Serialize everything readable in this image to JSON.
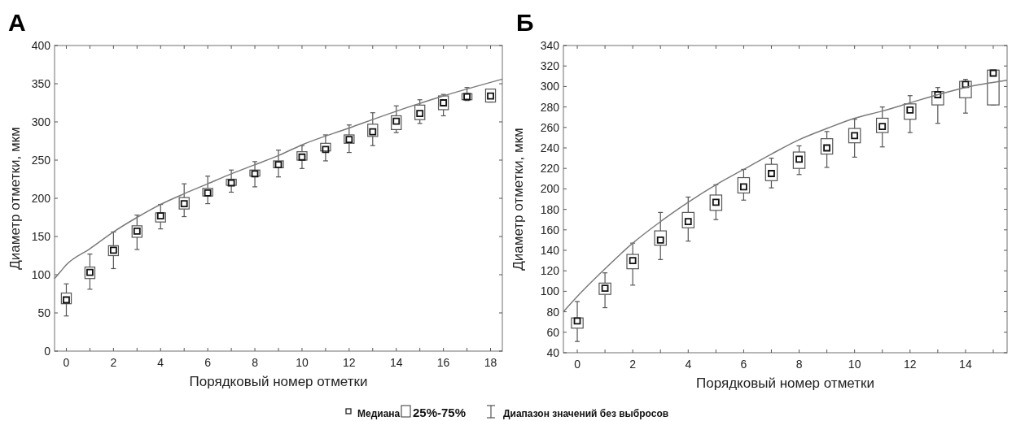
{
  "chart_data": [
    {
      "type": "box",
      "title": "А",
      "xlabel": "Порядковый номер отметки",
      "ylabel": "Диаметр отметки, мкм",
      "xlim": [
        -0.5,
        18.5
      ],
      "ylim": [
        0,
        400
      ],
      "xticks": [
        0,
        {
          "value": 1,
          "label": null
        },
        2,
        {
          "value": 3,
          "label": null
        },
        4,
        {
          "value": 5,
          "label": null
        },
        6,
        {
          "value": 7,
          "label": null
        },
        8,
        {
          "value": 9,
          "label": null
        },
        10,
        {
          "value": 11,
          "label": null
        },
        12,
        {
          "value": 13,
          "label": null
        },
        14,
        {
          "value": 15,
          "label": null
        },
        16,
        {
          "value": 17,
          "label": null
        },
        18
      ],
      "yticks": [
        0,
        50,
        100,
        150,
        200,
        250,
        300,
        350,
        400
      ],
      "annotations": [
        "Медиана",
        "25%-75%",
        "Диапазон значений без выбросов"
      ],
      "series": [
        {
          "color": "#555555",
          "x": [
            0,
            1,
            2,
            3,
            4,
            5,
            6,
            7,
            8,
            9,
            10,
            11,
            12,
            13,
            14,
            15,
            16,
            17,
            18
          ],
          "boxes": [
            {
              "low": 46,
              "q1": 62,
              "median": 67,
              "q3": 76,
              "high": 88
            },
            {
              "low": 81,
              "q1": 95,
              "median": 103,
              "q3": 110,
              "high": 127
            },
            {
              "low": 108,
              "q1": 125,
              "median": 132,
              "q3": 138,
              "high": 156
            },
            {
              "low": 133,
              "q1": 149,
              "median": 157,
              "q3": 164,
              "high": 178
            },
            {
              "low": 160,
              "q1": 169,
              "median": 177,
              "q3": 181,
              "high": 192
            },
            {
              "low": 176,
              "q1": 186,
              "median": 193,
              "q3": 201,
              "high": 219
            },
            {
              "low": 193,
              "q1": 203,
              "median": 207,
              "q3": 213,
              "high": 229
            },
            {
              "low": 208,
              "q1": 217,
              "median": 220,
              "q3": 225,
              "high": 237
            },
            {
              "low": 215,
              "q1": 229,
              "median": 232,
              "q3": 237,
              "high": 248
            },
            {
              "low": 228,
              "q1": 240,
              "median": 244,
              "q3": 249,
              "high": 263
            },
            {
              "low": 239,
              "q1": 250,
              "median": 254,
              "q3": 261,
              "high": 269
            },
            {
              "low": 249,
              "q1": 262,
              "median": 264,
              "q3": 272,
              "high": 283
            },
            {
              "low": 260,
              "q1": 272,
              "median": 277,
              "q3": 283,
              "high": 296
            },
            {
              "low": 269,
              "q1": 281,
              "median": 287,
              "q3": 297,
              "high": 312
            },
            {
              "low": 286,
              "q1": 290,
              "median": 301,
              "q3": 308,
              "high": 321
            },
            {
              "low": 298,
              "q1": 303,
              "median": 311,
              "q3": 322,
              "high": 329
            },
            {
              "low": 308,
              "q1": 316,
              "median": 325,
              "q3": 334,
              "high": 336
            },
            {
              "low": 328,
              "q1": 329,
              "median": 333,
              "q3": 337,
              "high": 345
            },
            {
              "low": 326,
              "q1": 326,
              "median": 334,
              "q3": 343,
              "high": 343
            }
          ]
        },
        {
          "type": "line",
          "color": "#7a7a7a",
          "x": [
            -0.5,
            -0.25,
            0,
            1,
            2,
            3,
            4,
            5,
            6,
            7,
            8,
            9,
            10,
            12,
            14,
            16,
            18.5
          ],
          "values": [
            95,
            104,
            113,
            134,
            156,
            175,
            192,
            206,
            219,
            232,
            244,
            256,
            270,
            292,
            314,
            334,
            356
          ]
        }
      ]
    },
    {
      "type": "box",
      "title": "Б",
      "xlabel": "Порядковый номер отметки",
      "ylabel": "Диаметр отметки, мкм",
      "xlim": [
        -0.5,
        15.5
      ],
      "ylim": [
        40,
        340
      ],
      "xticks": [
        0,
        {
          "value": 1,
          "label": null
        },
        2,
        {
          "value": 3,
          "label": null
        },
        4,
        {
          "value": 5,
          "label": null
        },
        6,
        {
          "value": 7,
          "label": null
        },
        8,
        {
          "value": 9,
          "label": null
        },
        10,
        {
          "value": 11,
          "label": null
        },
        12,
        {
          "value": 13,
          "label": null
        },
        14,
        {
          "value": 15,
          "label": null
        }
      ],
      "yticks": [
        40,
        60,
        80,
        100,
        120,
        140,
        160,
        180,
        200,
        220,
        240,
        260,
        280,
        300,
        320,
        340
      ],
      "series": [
        {
          "color": "#555555",
          "x": [
            0,
            1,
            2,
            3,
            4,
            5,
            6,
            7,
            8,
            9,
            10,
            11,
            12,
            13,
            14,
            15
          ],
          "boxes": [
            {
              "low": 51,
              "q1": 64,
              "median": 71,
              "q3": 74,
              "high": 90
            },
            {
              "low": 84,
              "q1": 97,
              "median": 103,
              "q3": 108,
              "high": 118
            },
            {
              "low": 106,
              "q1": 122,
              "median": 130,
              "q3": 136,
              "high": 147
            },
            {
              "low": 131,
              "q1": 145,
              "median": 150,
              "q3": 159,
              "high": 177
            },
            {
              "low": 149,
              "q1": 162,
              "median": 168,
              "q3": 177,
              "high": 192
            },
            {
              "low": 170,
              "q1": 179,
              "median": 187,
              "q3": 194,
              "high": 204
            },
            {
              "low": 189,
              "q1": 196,
              "median": 202,
              "q3": 211,
              "high": 219
            },
            {
              "low": 201,
              "q1": 208,
              "median": 215,
              "q3": 224,
              "high": 230
            },
            {
              "low": 214,
              "q1": 220,
              "median": 229,
              "q3": 236,
              "high": 242
            },
            {
              "low": 221,
              "q1": 234,
              "median": 240,
              "q3": 249,
              "high": 256
            },
            {
              "low": 231,
              "q1": 245,
              "median": 252,
              "q3": 259,
              "high": 268
            },
            {
              "low": 241,
              "q1": 255,
              "median": 261,
              "q3": 269,
              "high": 280
            },
            {
              "low": 255,
              "q1": 268,
              "median": 277,
              "q3": 283,
              "high": 291
            },
            {
              "low": 264,
              "q1": 282,
              "median": 292,
              "q3": 295,
              "high": 299
            },
            {
              "low": 274,
              "q1": 289,
              "median": 302,
              "q3": 305,
              "high": 307
            },
            {
              "low": 282,
              "q1": 282,
              "median": 313,
              "q3": 316,
              "high": 316
            }
          ]
        },
        {
          "type": "line",
          "color": "#7a7a7a",
          "x": [
            -0.5,
            0,
            1,
            2,
            3,
            4,
            5,
            6,
            7,
            8,
            9,
            10,
            11,
            12,
            13,
            14,
            15.5
          ],
          "values": [
            80,
            95,
            122,
            147,
            168,
            187,
            204,
            219,
            234,
            248,
            259,
            269,
            276,
            284,
            292,
            299,
            306
          ]
        }
      ]
    }
  ]
}
